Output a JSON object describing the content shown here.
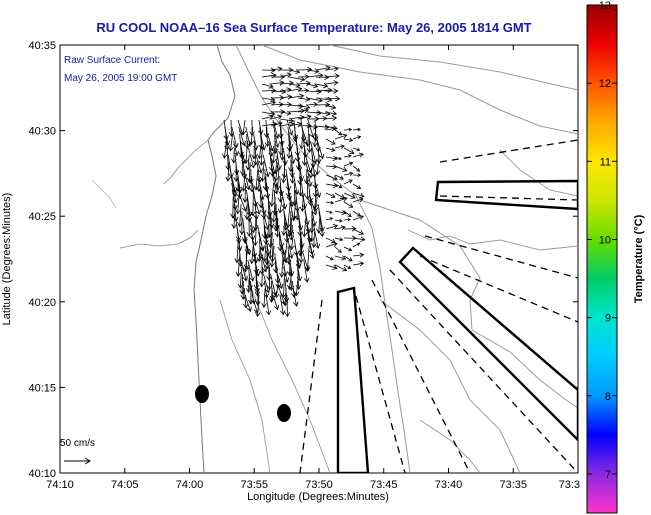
{
  "title": "RU COOL  NOAA–16  Sea Surface Temperature:  May 26, 2005 1814 GMT",
  "legend": {
    "line1": "Raw Surface Current:",
    "line2": "May 26, 2005 19:00 GMT"
  },
  "axes": {
    "xlabel": "Longitude (Degrees:Minutes)",
    "ylabel": "Latitude (Degrees:Minutes)",
    "x_ticks": [
      "74:10",
      "74:05",
      "74:00",
      "73:55",
      "73:50",
      "73:45",
      "73:40",
      "73:35",
      "73:3"
    ],
    "y_ticks": [
      "40:35",
      "40:30",
      "40:25",
      "40:20",
      "40:15",
      "40:10"
    ]
  },
  "scale_bar": {
    "label": "50 cm/s"
  },
  "colorbar": {
    "label": "Temperature (°C)",
    "ticks": [
      "13",
      "12",
      "11",
      "10",
      "9",
      "8",
      "7"
    ],
    "min": 6.5,
    "max": 13,
    "colors": [
      "#ff33cc",
      "#8a2be2",
      "#0000ff",
      "#0099ff",
      "#00ccff",
      "#00e5cc",
      "#00cc66",
      "#66dd00",
      "#cce600",
      "#ffe600",
      "#ffaa00",
      "#ff5500",
      "#ee0000",
      "#990000"
    ]
  },
  "colors": {
    "title": "#1a1aa8",
    "land": "#ffffff",
    "contour": "#9a9a9a",
    "vectors": "#000000"
  }
}
